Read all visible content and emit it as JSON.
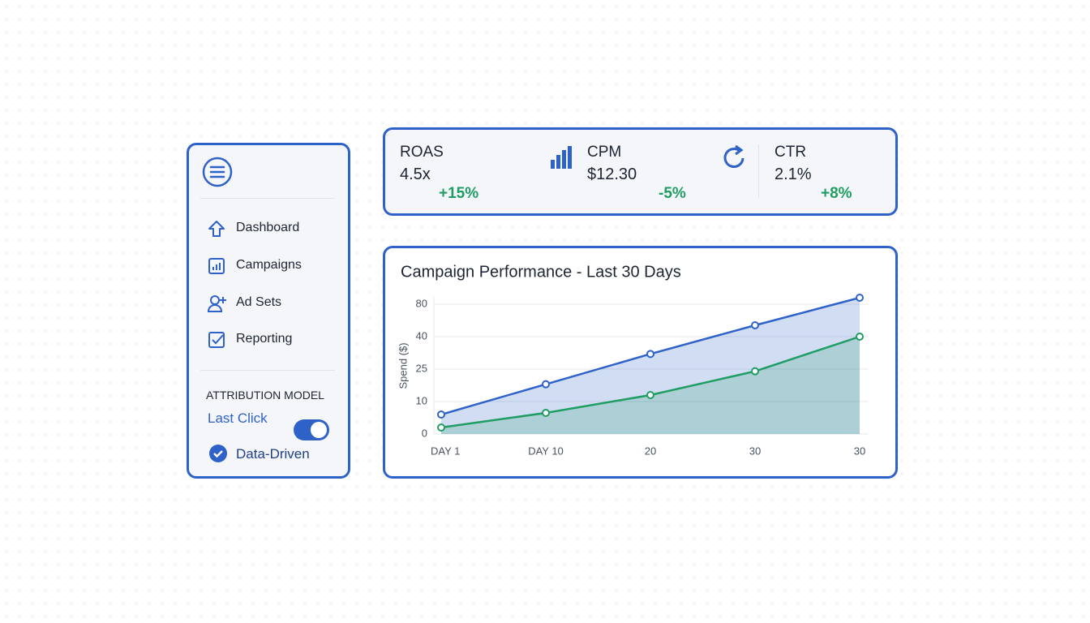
{
  "sidebar": {
    "nav": [
      "Dashboard",
      "Campaigns",
      "Ad Sets",
      "Reporting"
    ],
    "attribution": {
      "title": "ATTRIBUTION MODEL",
      "options": [
        "Last Click",
        "Data-Driven"
      ]
    }
  },
  "kpis": [
    {
      "label": "ROAS",
      "value": "4.5x",
      "change": "+15%"
    },
    {
      "label": "CPM",
      "value": "$12.30",
      "change": "-5%"
    },
    {
      "label": "CTR",
      "value": "2.1%",
      "change": "+8%"
    }
  ],
  "chart_data": {
    "type": "area",
    "title": "Campaign Performance - Last 30 Days",
    "y_label": "Spend ($)",
    "categories": [
      "DAY 1",
      "DAY 10",
      "20",
      "30",
      "30"
    ],
    "series": [
      {
        "color": "#2f62c9",
        "values": [
          6,
          18,
          32,
          54,
          88
        ]
      },
      {
        "color": "#1f9d63",
        "values": [
          2,
          6.5,
          13,
          24,
          40
        ]
      }
    ],
    "ylim": [
      0,
      90
    ],
    "yticks": [
      0,
      10,
      25,
      40,
      80
    ],
    "grid": true
  }
}
